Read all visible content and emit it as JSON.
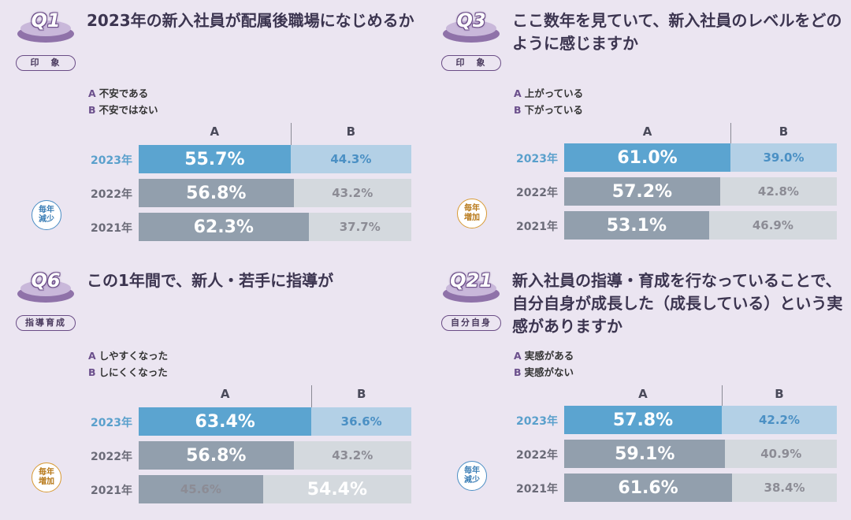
{
  "chart_data": [
    {
      "type": "bar",
      "question_number": "Q1",
      "tag": "印　象",
      "title": "2023年の新入社員が配属後職場になじめるか",
      "legend": [
        {
          "key": "A",
          "label": "不安である"
        },
        {
          "key": "B",
          "label": "不安ではない"
        }
      ],
      "column_headers": [
        "A",
        "B"
      ],
      "categories": [
        "2023年",
        "2022年",
        "2021年"
      ],
      "series": [
        {
          "name": "A",
          "values": [
            55.7,
            56.8,
            62.3
          ],
          "labels": [
            "55.7%",
            "56.8%",
            "62.3%"
          ]
        },
        {
          "name": "B",
          "values": [
            44.3,
            43.2,
            37.7
          ],
          "labels": [
            "44.3%",
            "43.2%",
            "37.7%"
          ]
        }
      ],
      "trend": {
        "label": "毎年減少",
        "type": "decrease"
      }
    },
    {
      "type": "bar",
      "question_number": "Q3",
      "tag": "印　象",
      "title": "ここ数年を見ていて、新入社員のレベルをどのように感じますか",
      "legend": [
        {
          "key": "A",
          "label": "上がっている"
        },
        {
          "key": "B",
          "label": "下がっている"
        }
      ],
      "column_headers": [
        "A",
        "B"
      ],
      "categories": [
        "2023年",
        "2022年",
        "2021年"
      ],
      "series": [
        {
          "name": "A",
          "values": [
            61.0,
            57.2,
            53.1
          ],
          "labels": [
            "61.0%",
            "57.2%",
            "53.1%"
          ]
        },
        {
          "name": "B",
          "values": [
            39.0,
            42.8,
            46.9
          ],
          "labels": [
            "39.0%",
            "42.8%",
            "46.9%"
          ]
        }
      ],
      "trend": {
        "label": "毎年増加",
        "type": "increase"
      }
    },
    {
      "type": "bar",
      "question_number": "Q6",
      "tag": "指導育成",
      "title": "この1年間で、新人・若手に指導が",
      "legend": [
        {
          "key": "A",
          "label": "しやすくなった"
        },
        {
          "key": "B",
          "label": "しにくくなった"
        }
      ],
      "column_headers": [
        "A",
        "B"
      ],
      "categories": [
        "2023年",
        "2022年",
        "2021年"
      ],
      "series": [
        {
          "name": "A",
          "values": [
            63.4,
            56.8,
            45.6
          ],
          "labels": [
            "63.4%",
            "56.8%",
            "45.6%"
          ]
        },
        {
          "name": "B",
          "values": [
            36.6,
            43.2,
            54.4
          ],
          "labels": [
            "36.6%",
            "43.2%",
            "54.4%"
          ]
        }
      ],
      "trend": {
        "label": "毎年増加",
        "type": "increase"
      }
    },
    {
      "type": "bar",
      "question_number": "Q21",
      "tag": "自分自身",
      "title": "新入社員の指導・育成を行なっていることで、自分自身が成長した（成長している）という実感がありますか",
      "legend": [
        {
          "key": "A",
          "label": "実感がある"
        },
        {
          "key": "B",
          "label": "実感がない"
        }
      ],
      "column_headers": [
        "A",
        "B"
      ],
      "categories": [
        "2023年",
        "2022年",
        "2021年"
      ],
      "series": [
        {
          "name": "A",
          "values": [
            57.8,
            59.1,
            61.6
          ],
          "labels": [
            "57.8%",
            "59.1%",
            "61.6%"
          ]
        },
        {
          "name": "B",
          "values": [
            42.2,
            40.9,
            38.4
          ],
          "labels": [
            "42.2%",
            "40.9%",
            "38.4%"
          ]
        }
      ],
      "trend": {
        "label": "毎年減少",
        "type": "decrease"
      }
    }
  ],
  "colors": {
    "a_current": "#5ba4d0",
    "b_current": "#b3d0e6",
    "a_past": "#929fad",
    "b_past": "#d4d9de",
    "badge": "#8f72a9"
  }
}
